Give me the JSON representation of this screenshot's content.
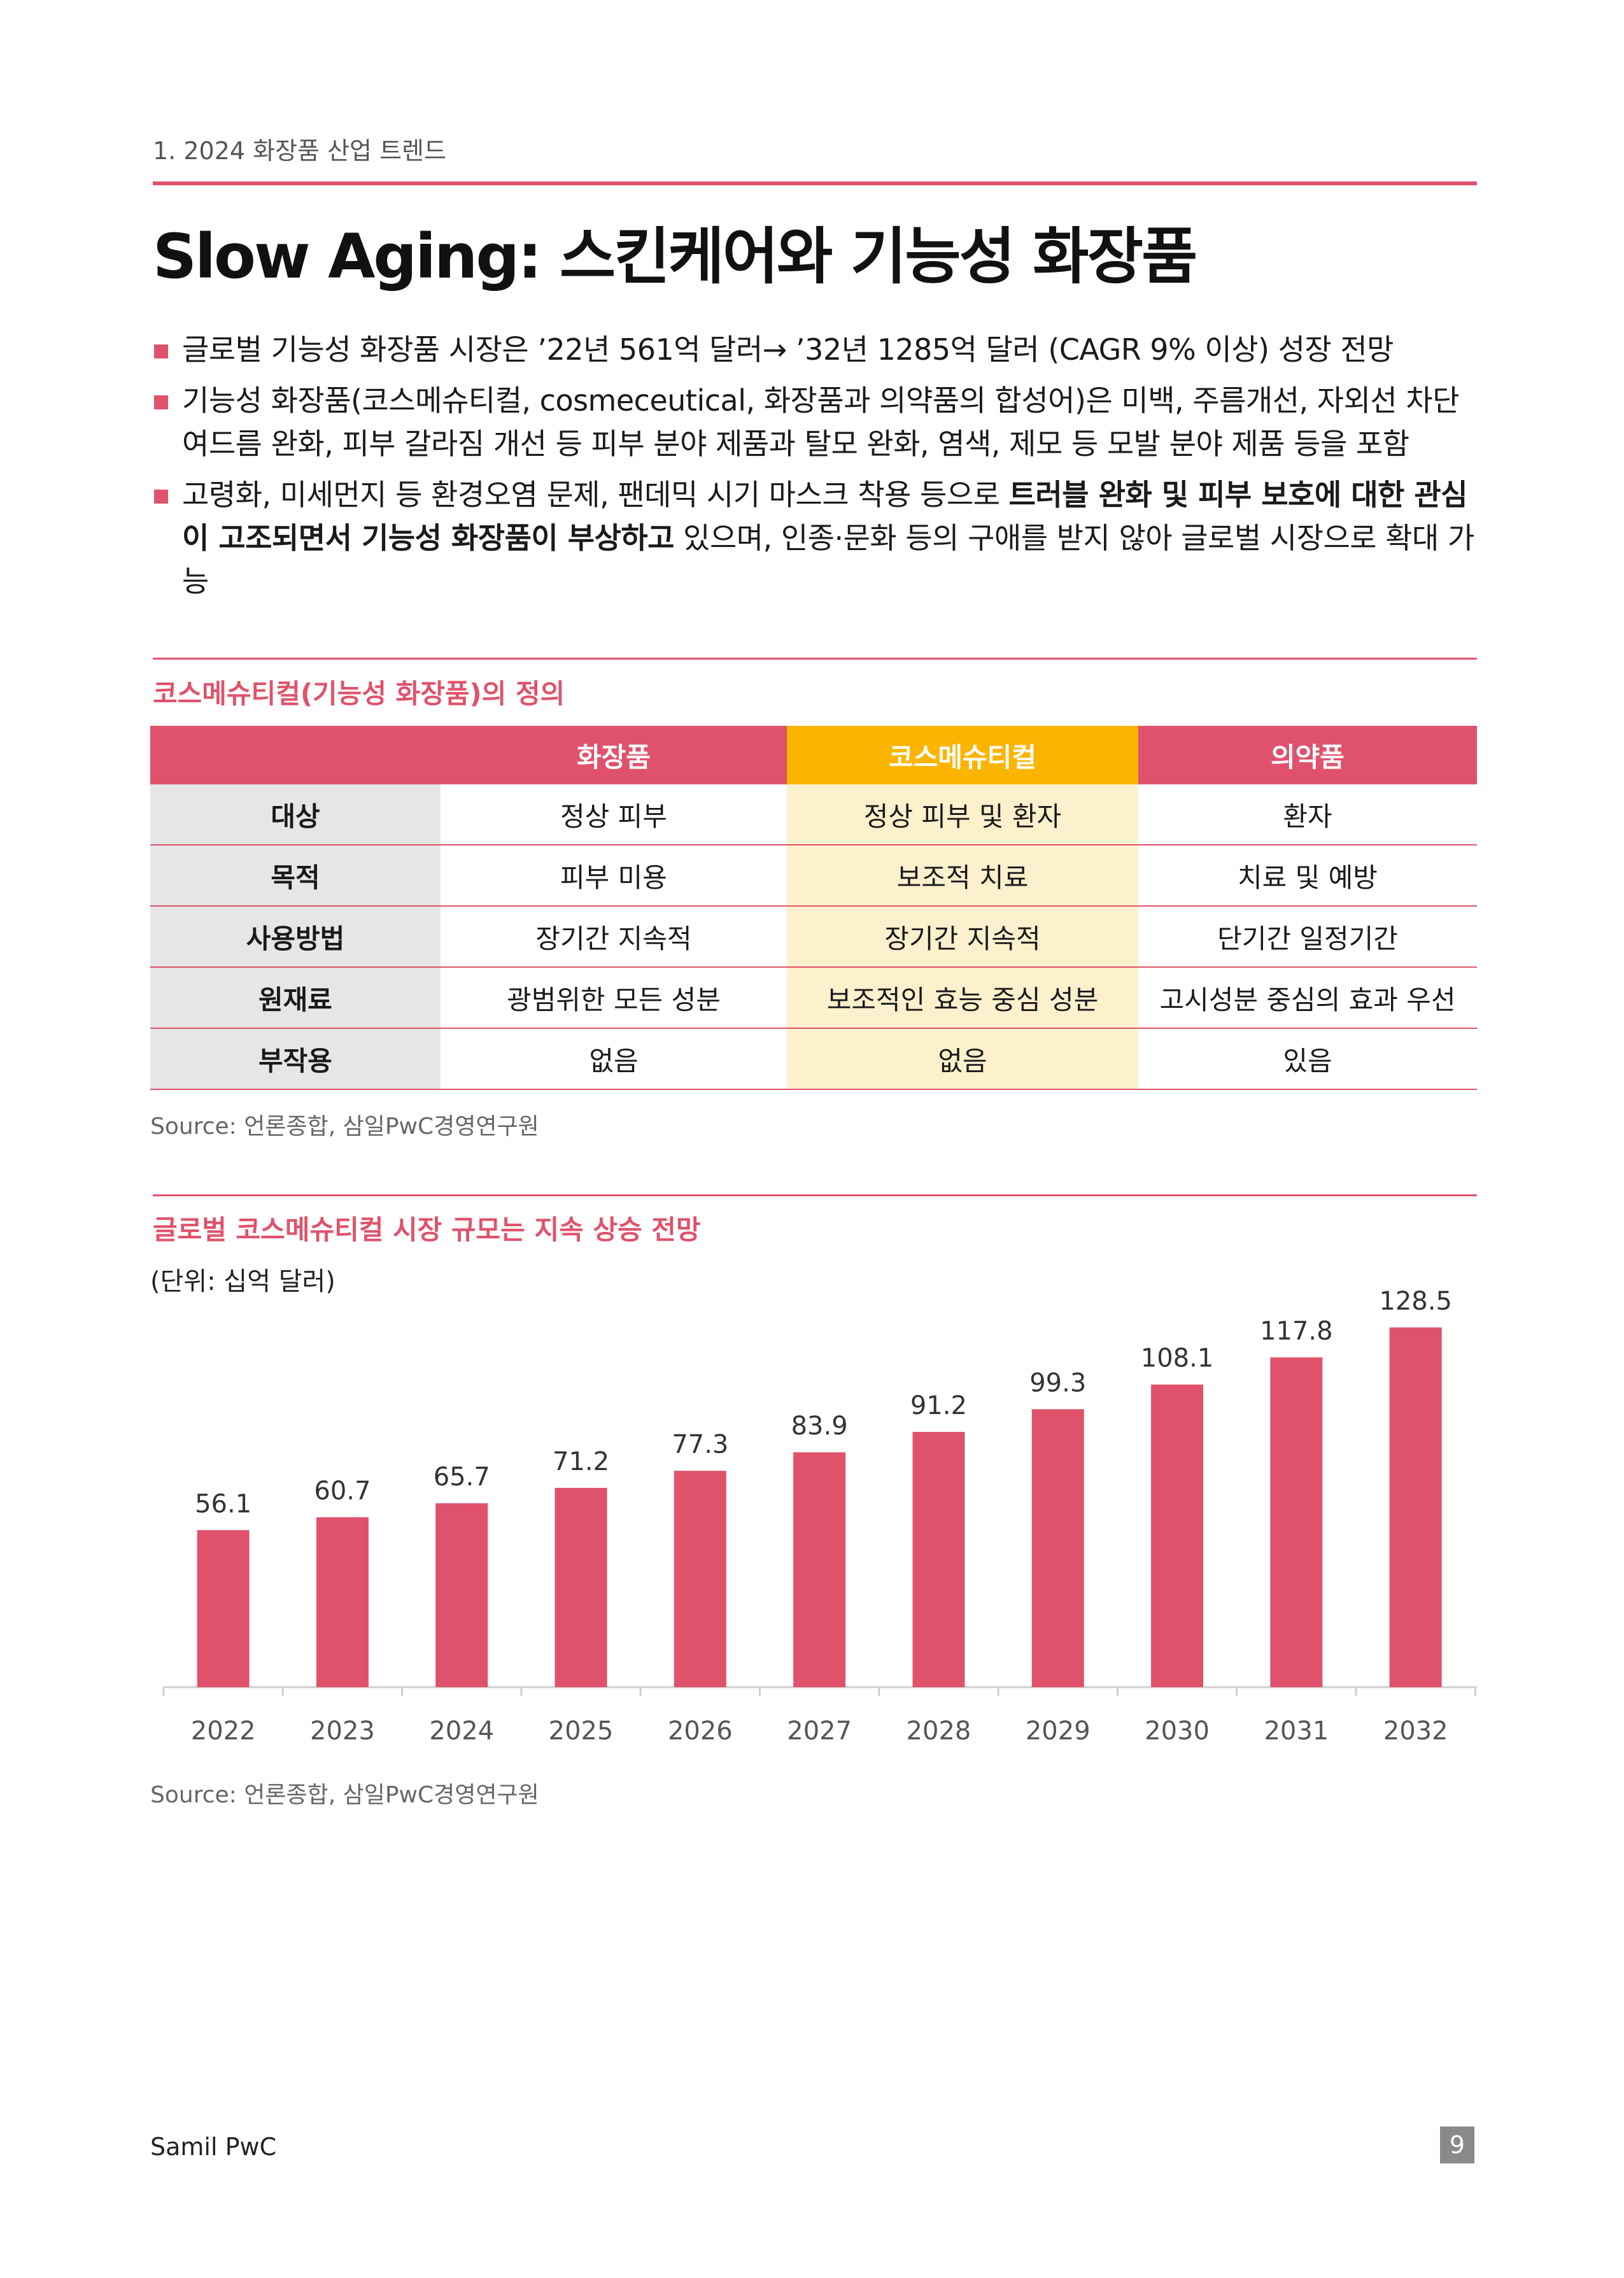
{
  "header": {
    "section": "1. 2024 화장품 산업 트렌드"
  },
  "title": "Slow Aging: 스킨케어와 기능성 화장품",
  "bullets": [
    {
      "before": "글로벌 기능성 화장품 시장은 ’22년 561억 달러→ ’32년 1285억 달러 (CAGR 9% 이상) 성장 전망",
      "bold": "",
      "after": ""
    },
    {
      "before": "기능성 화장품(코스메슈티컬, cosmeceutical, 화장품과 의약품의 합성어)은 미백, 주름개선, 자외선 차단 여드름 완화, 피부 갈라짐 개선 등 피부 분야 제품과 탈모 완화, 염색, 제모 등 모발 분야 제품 등을 포함",
      "bold": "",
      "after": ""
    },
    {
      "before": "고령화, 미세먼지 등 환경오염 문제, 팬데믹 시기 마스크 착용 등으로 ",
      "bold": "트러블 완화 및 피부 보호에 대한 관심이 고조되면서 기능성 화장품이 부상하고",
      "after": " 있으며, 인종·문화 등의 구애를 받지 않아 글로벌 시장으로 확대 가능"
    }
  ],
  "definition": {
    "title": "코스메슈티컬(기능성 화장품)의 정의",
    "columns": [
      "",
      "화장품",
      "코스메슈티컬",
      "의약품"
    ],
    "rows": [
      {
        "label": "대상",
        "cells": [
          "정상 피부",
          "정상 피부 및 환자",
          "환자"
        ]
      },
      {
        "label": "목적",
        "cells": [
          "피부 미용",
          "보조적 치료",
          "치료 및 예방"
        ]
      },
      {
        "label": "사용방법",
        "cells": [
          "장기간 지속적",
          "장기간 지속적",
          "단기간 일정기간"
        ]
      },
      {
        "label": "원재료",
        "cells": [
          "광범위한 모든 성분",
          "보조적인 효능 중심 성분",
          "고시성분 중심의 효과 우선"
        ]
      },
      {
        "label": "부작용",
        "cells": [
          "없음",
          "없음",
          "있음"
        ]
      }
    ],
    "source": "Source: 언론종합, 삼일PwC경영연구원"
  },
  "market": {
    "title": "글로벌 코스메슈티컬 시장 규모는 지속 상승 전망",
    "unit": "(단위: 십억 달러)",
    "source": "Source: 언론종합, 삼일PwC경영연구원"
  },
  "chart_data": {
    "type": "bar",
    "categories": [
      "2022",
      "2023",
      "2024",
      "2025",
      "2026",
      "2027",
      "2028",
      "2029",
      "2030",
      "2031",
      "2032"
    ],
    "values": [
      56.1,
      60.7,
      65.7,
      71.2,
      77.3,
      83.9,
      91.2,
      99.3,
      108.1,
      117.8,
      128.5
    ],
    "title": "글로벌 코스메슈티컬 시장 규모는 지속 상승 전망",
    "ylabel": "(단위: 십억 달러)",
    "ylim": [
      0,
      128.5
    ],
    "grid": false,
    "data_labels": true,
    "bar_color": "#e0526b"
  },
  "footer": {
    "brand": "Samil PwC",
    "page": "9"
  },
  "colors": {
    "accent": "#e0526b",
    "highlight": "#fbb500",
    "highlight_light": "#fdf0cc"
  }
}
